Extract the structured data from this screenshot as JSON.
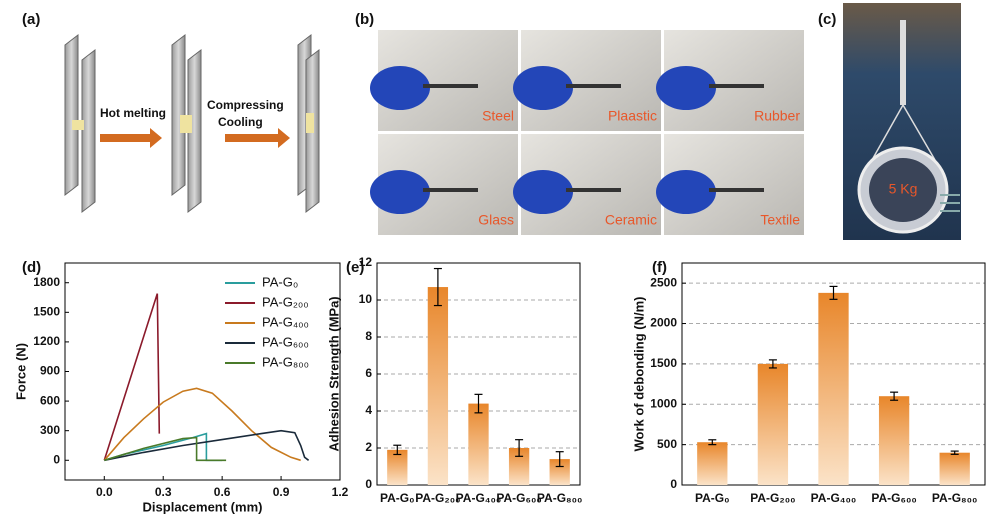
{
  "panel_labels": [
    "(a)",
    "(b)",
    "(c)",
    "(d)",
    "(e)",
    "(f)"
  ],
  "schematic": {
    "step1": "Hot melting",
    "step2": [
      "Compressing",
      "Cooling"
    ]
  },
  "photos": [
    "Steel",
    "Plaastic",
    "Rubber",
    "Glass",
    "Ceramic",
    "Textile"
  ],
  "weight": "5 Kg",
  "chart_data": [
    {
      "type": "line",
      "xlabel": "Displacement (mm)",
      "ylabel": "Force (N)",
      "xlim": [
        -0.2,
        1.2
      ],
      "ylim": [
        -200,
        2000
      ],
      "xticks": [
        {
          "value": 0,
          "label": "0.0"
        },
        {
          "value": 0.3,
          "label": "0.3"
        },
        {
          "value": 0.6,
          "label": "0.6"
        },
        {
          "value": 0.9,
          "label": "0.9"
        },
        {
          "value": 1.2,
          "label": "1.2"
        }
      ],
      "yticks": [
        0,
        300,
        600,
        900,
        1200,
        1500,
        1800
      ],
      "series": [
        {
          "name": "PA-G₀",
          "color": "#2a9d9d",
          "x": [
            0,
            0.1,
            0.3,
            0.45,
            0.52,
            0.52,
            0.6
          ],
          "values": [
            0,
            60,
            150,
            230,
            270,
            0,
            0
          ]
        },
        {
          "name": "PA-G₂₀₀",
          "color": "#8b1a2b",
          "x": [
            0,
            0.27,
            0.28
          ],
          "values": [
            0,
            1690,
            270
          ]
        },
        {
          "name": "PA-G₄₀₀",
          "color": "#c87a1e",
          "x": [
            0,
            0.1,
            0.2,
            0.3,
            0.4,
            0.47,
            0.55,
            0.65,
            0.75,
            0.85,
            0.95,
            1.0
          ],
          "values": [
            0,
            230,
            420,
            590,
            700,
            730,
            680,
            500,
            300,
            130,
            30,
            0
          ]
        },
        {
          "name": "PA-G₆₀₀",
          "color": "#1a2a3a",
          "x": [
            0,
            0.2,
            0.4,
            0.6,
            0.8,
            0.9,
            0.97,
            1.0,
            1.02,
            1.04
          ],
          "values": [
            0,
            80,
            150,
            210,
            270,
            300,
            280,
            150,
            30,
            0
          ]
        },
        {
          "name": "PA-G₈₀₀",
          "color": "#4a7a2a",
          "x": [
            0,
            0.2,
            0.4,
            0.47,
            0.47,
            0.62
          ],
          "values": [
            0,
            120,
            220,
            230,
            0,
            0
          ]
        }
      ]
    },
    {
      "type": "bar",
      "ylabel": "Adhesion Strength (MPa)",
      "color": "#e8862a",
      "categories": [
        "PA-G₀",
        "PA-G₂₀₀",
        "PA-G₄₀₀",
        "PA-G₆₀₀",
        "PA-G₈₀₀"
      ],
      "values": [
        1.9,
        10.7,
        4.4,
        2.0,
        1.4
      ],
      "errors": [
        0.25,
        1.0,
        0.5,
        0.45,
        0.4
      ],
      "ylim": [
        0,
        12
      ],
      "yticks": [
        0,
        2,
        4,
        6,
        8,
        10,
        12
      ],
      "grid": true
    },
    {
      "type": "bar",
      "ylabel": "Work of debonding (N/m)",
      "color": "#e8862a",
      "categories": [
        "PA-G₀",
        "PA-G₂₀₀",
        "PA-G₄₀₀",
        "PA-G₆₀₀",
        "PA-G₈₀₀"
      ],
      "values": [
        530,
        1500,
        2380,
        1100,
        400
      ],
      "errors": [
        30,
        50,
        80,
        50,
        20
      ],
      "ylim": [
        0,
        2750
      ],
      "yticks": [
        0,
        500,
        1000,
        1500,
        2000,
        2500
      ],
      "grid": true
    }
  ]
}
